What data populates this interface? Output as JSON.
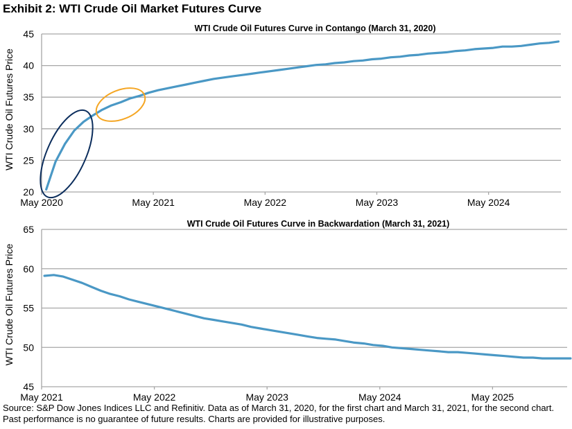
{
  "exhibit_title": "Exhibit 2: WTI Crude Oil Market Futures Curve",
  "colors": {
    "line": "#4a98c5",
    "grid": "#a6a6a6",
    "annotation_navy": "#0b2d5c",
    "annotation_orange": "#f5a623"
  },
  "chart_data": [
    {
      "type": "line",
      "title": "WTI Crude Oil Futures Curve in Contango (March 31, 2020)",
      "xlabel": "",
      "ylabel": "WTI Crude Oil Futures Price",
      "ylim": [
        20,
        45
      ],
      "yticks": [
        20,
        25,
        30,
        35,
        40,
        45
      ],
      "xlim_months_from_first_tick": [
        0,
        56.5
      ],
      "xticks": [
        {
          "label": "May 2020",
          "month": 0
        },
        {
          "label": "May 2021",
          "month": 12
        },
        {
          "label": "May 2022",
          "month": 24
        },
        {
          "label": "May 2023",
          "month": 36
        },
        {
          "label": "May 2024",
          "month": 48
        }
      ],
      "grid": true,
      "annotations": [
        "navy ellipse around steep front-end months",
        "orange ellipse around flattening segment"
      ],
      "series": [
        {
          "name": "WTI Crude Oil Futures Curve (March 31, 2020)",
          "months": [
            0.5,
            1.5,
            2.5,
            3.5,
            4.5,
            5.5,
            6.5,
            7.5,
            8.5,
            9.5,
            10.5,
            11.5,
            12.5,
            13.5,
            14.5,
            15.5,
            16.5,
            17.5,
            18.5,
            19.5,
            20.5,
            21.5,
            22.5,
            23.5,
            24.5,
            25.5,
            26.5,
            27.5,
            28.5,
            29.5,
            30.5,
            31.5,
            32.5,
            33.5,
            34.5,
            35.5,
            36.5,
            37.5,
            38.5,
            39.5,
            40.5,
            41.5,
            42.5,
            43.5,
            44.5,
            45.5,
            46.5,
            47.5,
            48.5,
            49.5,
            50.5,
            51.5,
            52.5,
            53.5,
            54.5,
            55.5
          ],
          "values": [
            20.4,
            24.8,
            27.6,
            29.7,
            31.1,
            32.1,
            33.0,
            33.7,
            34.2,
            34.8,
            35.2,
            35.7,
            36.1,
            36.4,
            36.7,
            37.0,
            37.3,
            37.6,
            37.9,
            38.1,
            38.3,
            38.5,
            38.7,
            38.9,
            39.1,
            39.3,
            39.5,
            39.7,
            39.9,
            40.1,
            40.2,
            40.4,
            40.5,
            40.7,
            40.8,
            41.0,
            41.1,
            41.3,
            41.4,
            41.6,
            41.7,
            41.9,
            42.0,
            42.1,
            42.3,
            42.4,
            42.6,
            42.7,
            42.8,
            43.0,
            43.0,
            43.1,
            43.3,
            43.5,
            43.6,
            43.8
          ]
        }
      ]
    },
    {
      "type": "line",
      "title": "WTI Crude Oil Futures Curve in Backwardation (March 31, 2021)",
      "xlabel": "",
      "ylabel": "WTI Crude Oil Futures Price",
      "ylim": [
        45,
        65
      ],
      "yticks": [
        45,
        50,
        55,
        60,
        65
      ],
      "xlim_months_from_first_tick": [
        0,
        57
      ],
      "xticks": [
        {
          "label": "May 2021",
          "month": 0
        },
        {
          "label": "May 2022",
          "month": 12
        },
        {
          "label": "May 2023",
          "month": 24
        },
        {
          "label": "May 2024",
          "month": 36
        },
        {
          "label": "May 2025",
          "month": 48
        }
      ],
      "grid": true,
      "series": [
        {
          "name": "WTI Crude Oil Futures Curve (March 31, 2021)",
          "months": [
            0.3,
            1.3,
            2.3,
            3.3,
            4.3,
            5.3,
            6.3,
            7.3,
            8.3,
            9.3,
            10.3,
            11.3,
            12.3,
            13.3,
            14.3,
            15.3,
            16.3,
            17.3,
            18.3,
            19.3,
            20.3,
            21.3,
            22.3,
            23.3,
            24.3,
            25.3,
            26.3,
            27.3,
            28.3,
            29.3,
            30.3,
            31.3,
            32.3,
            33.3,
            34.3,
            35.3,
            36.3,
            37.3,
            38.3,
            39.3,
            40.3,
            41.3,
            42.3,
            43.3,
            44.3,
            45.3,
            46.3,
            47.3,
            48.3,
            49.3,
            50.3,
            51.3,
            52.3,
            53.3,
            54.3,
            55.3,
            56.3
          ],
          "values": [
            59.1,
            59.2,
            59.0,
            58.6,
            58.2,
            57.7,
            57.2,
            56.8,
            56.5,
            56.1,
            55.8,
            55.5,
            55.2,
            54.9,
            54.6,
            54.3,
            54.0,
            53.7,
            53.5,
            53.3,
            53.1,
            52.9,
            52.6,
            52.4,
            52.2,
            52.0,
            51.8,
            51.6,
            51.4,
            51.2,
            51.1,
            51.0,
            50.8,
            50.6,
            50.5,
            50.3,
            50.2,
            50.0,
            49.9,
            49.8,
            49.7,
            49.6,
            49.5,
            49.4,
            49.4,
            49.3,
            49.2,
            49.1,
            49.0,
            48.9,
            48.8,
            48.7,
            48.7,
            48.6,
            48.6,
            48.6,
            48.6
          ]
        }
      ]
    }
  ],
  "source_note": "Source: S&P Dow Jones Indices LLC and Refinitiv. Data as of March 31, 2020, for the first chart and March 31, 2021, for the second chart. Past performance is no guarantee of future results. Charts are provided for illustrative purposes."
}
